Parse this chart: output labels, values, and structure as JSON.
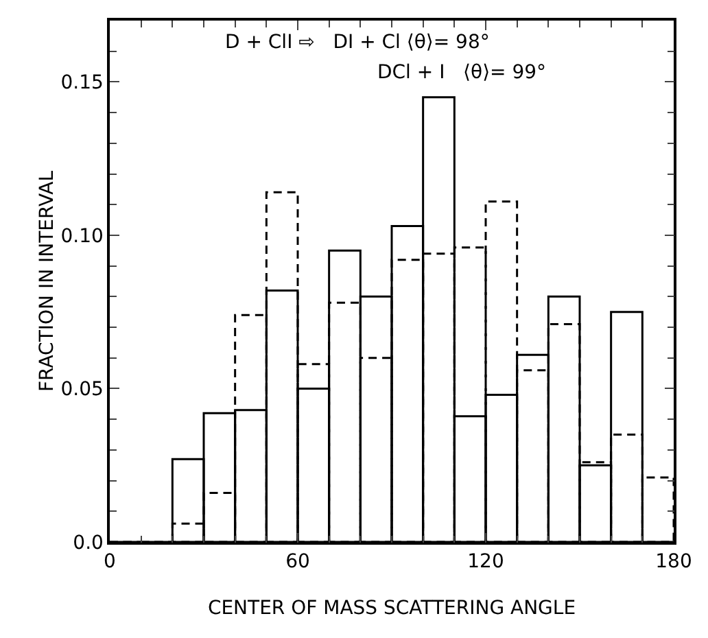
{
  "chart_data": {
    "type": "histogram",
    "xlabel": "CENTER OF MASS SCATTERING ANGLE",
    "ylabel": "FRACTION IN INTERVAL",
    "bins": [
      0,
      10,
      20,
      30,
      40,
      50,
      60,
      70,
      80,
      90,
      100,
      110,
      120,
      130,
      140,
      150,
      160,
      170,
      180
    ],
    "series": [
      {
        "color": "#000000",
        "line_style": "solid",
        "values": [
          0,
          0,
          0.027,
          0.042,
          0.043,
          0.082,
          0.05,
          0.095,
          0.08,
          0.103,
          0.145,
          0.041,
          0.048,
          0.061,
          0.08,
          0.025,
          0.075,
          0
        ]
      },
      {
        "color": "#000000",
        "line_style": "dashed",
        "values": [
          0,
          0,
          0.006,
          0.016,
          0.074,
          0.114,
          0.058,
          0.078,
          0.06,
          0.092,
          0.094,
          0.096,
          0.111,
          0.056,
          0.071,
          0.026,
          0.035,
          0.021
        ]
      }
    ],
    "xlim": [
      0,
      180
    ],
    "xticks": [
      0,
      {
        "value": 10,
        "label": null
      },
      {
        "value": 20,
        "label": null
      },
      {
        "value": 30,
        "label": null
      },
      {
        "value": 40,
        "label": null
      },
      {
        "value": 50,
        "label": null
      },
      60,
      {
        "value": 70,
        "label": null
      },
      {
        "value": 80,
        "label": null
      },
      {
        "value": 90,
        "label": null
      },
      {
        "value": 100,
        "label": null
      },
      {
        "value": 110,
        "label": null
      },
      120,
      {
        "value": 130,
        "label": null
      },
      {
        "value": 140,
        "label": null
      },
      {
        "value": 150,
        "label": null
      },
      {
        "value": 160,
        "label": null
      },
      {
        "value": 170,
        "label": null
      },
      180
    ],
    "ylim": [
      0,
      0.17
    ],
    "yticks": [
      {
        "value": 0,
        "label": "0.0"
      },
      {
        "value": 0.01,
        "label": null
      },
      {
        "value": 0.02,
        "label": null
      },
      {
        "value": 0.03,
        "label": null
      },
      {
        "value": 0.04,
        "label": null
      },
      0.05,
      {
        "value": 0.06,
        "label": null
      },
      {
        "value": 0.07,
        "label": null
      },
      {
        "value": 0.08,
        "label": null
      },
      {
        "value": 0.09,
        "label": null
      },
      {
        "value": 0.1,
        "label": "0.10"
      },
      {
        "value": 0.11,
        "label": null
      },
      {
        "value": 0.12,
        "label": null
      },
      {
        "value": 0.13,
        "label": null
      },
      {
        "value": 0.14,
        "label": null
      },
      0.15,
      {
        "value": 0.16,
        "label": null
      }
    ],
    "annotations": [
      "D + ClI ⇨   DI + Cl ⟨θ⟩= 98°",
      "DCl + I   ⟨θ⟩= 99°"
    ]
  }
}
